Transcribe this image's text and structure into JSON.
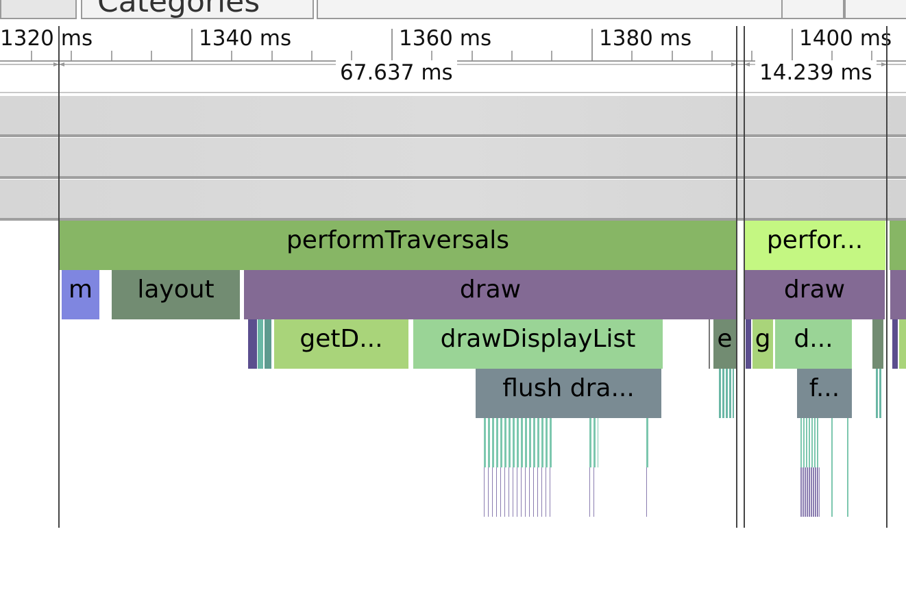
{
  "toolbar": {
    "categories_label": "Categories"
  },
  "ruler": {
    "ticks": [
      "1320 ms",
      "1340 ms",
      "1360 ms",
      "1380 ms",
      "1400 ms"
    ]
  },
  "measurements": [
    {
      "label": "67.637 ms"
    },
    {
      "label": "14.239 ms"
    }
  ],
  "slices": {
    "perform_traversals_1": "performTraversals",
    "perform_traversals_2": "perfor...",
    "measure_1": "m",
    "layout_1": "layout",
    "draw_1": "draw",
    "draw_2": "draw",
    "get_display_list_1": "getD...",
    "draw_display_list_1": "drawDisplayList",
    "e_1": "e",
    "g_2": "g",
    "draw_display_list_2": "d...",
    "flush_1": "flush dra...",
    "flush_2": "f..."
  },
  "colors": {
    "performTraversals": "#87b665",
    "performTraversals_selected": "#c4f782",
    "measure": "#7f86e0",
    "layout": "#728c72",
    "draw": "#836a94",
    "getDisplayList": "#a9d47a",
    "drawDisplayList": "#9ad496",
    "flush": "#7a8b93",
    "tiny_teal": "#6ab7a5"
  }
}
